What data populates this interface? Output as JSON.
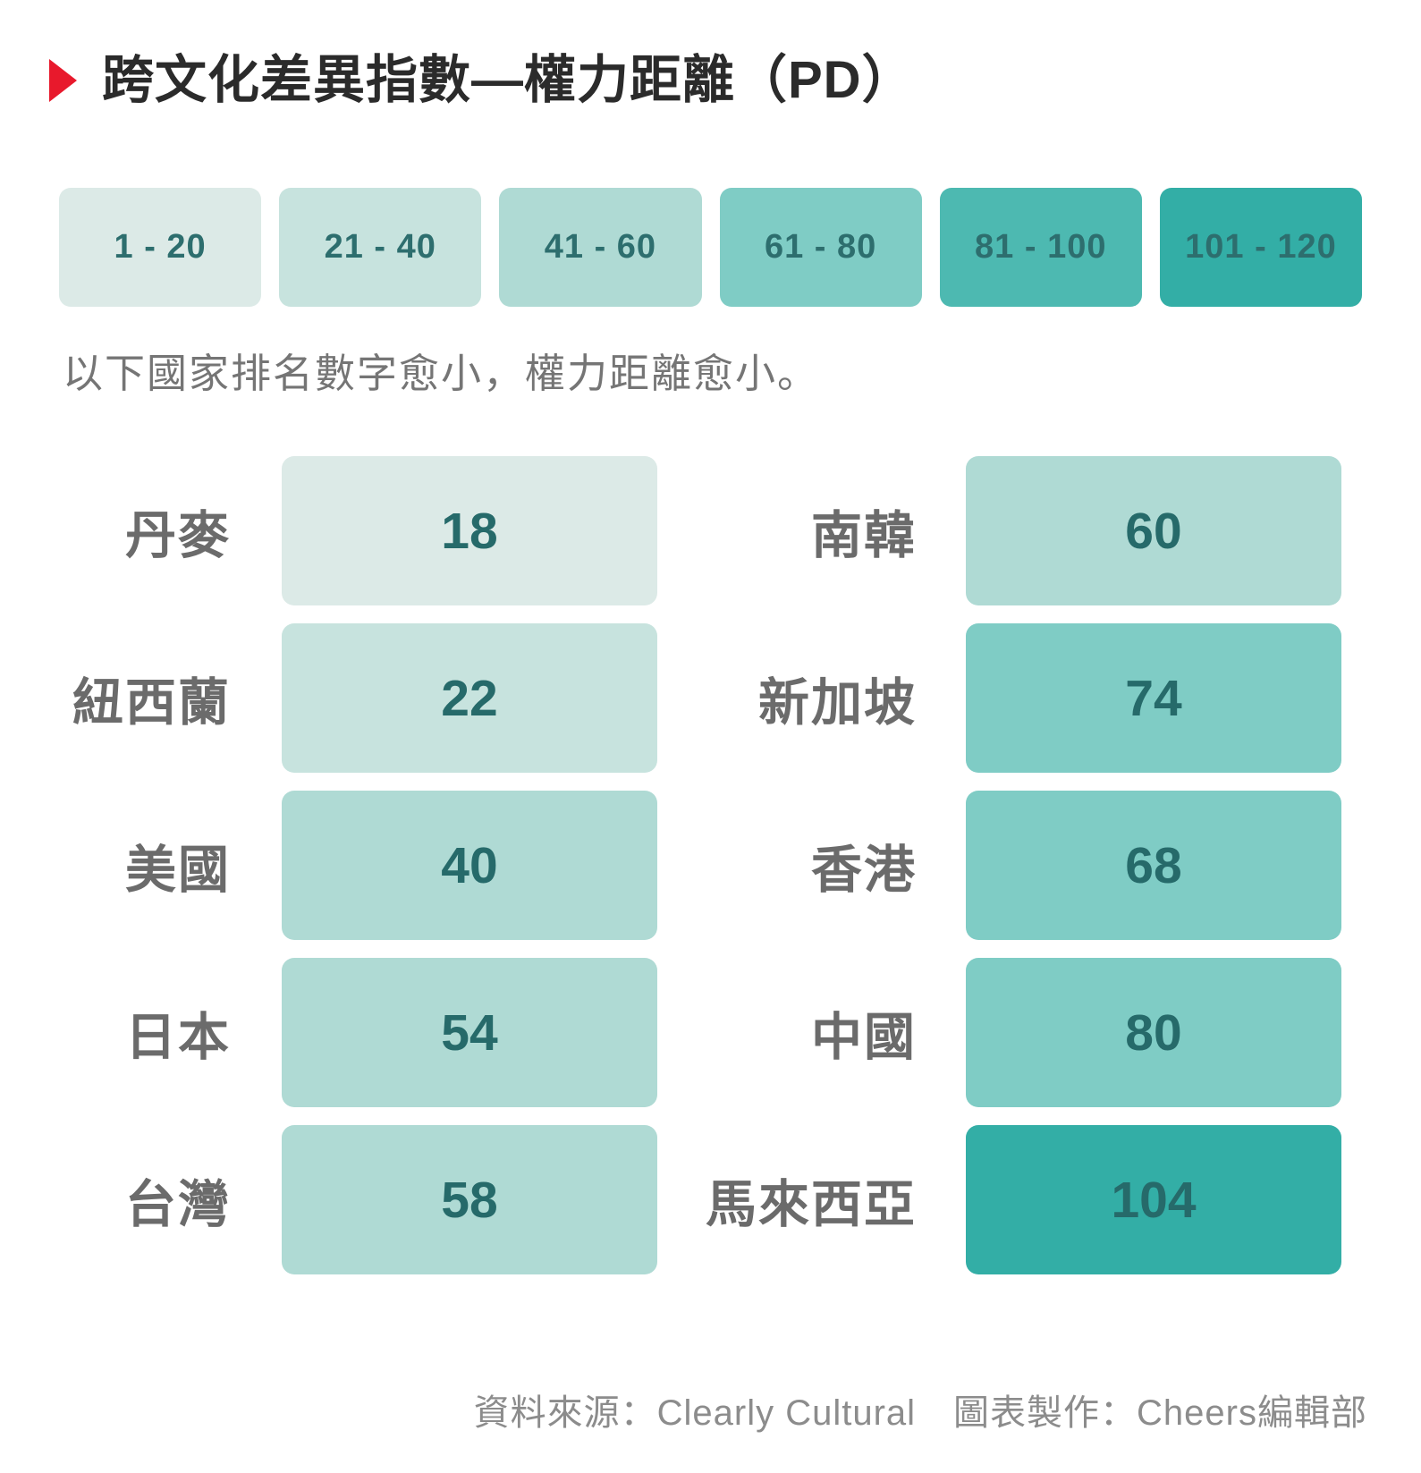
{
  "title": "跨文化差異指數—權力距離（PD）",
  "subtitle": "以下國家排名數字愈小，權力距離愈小。",
  "colors": {
    "accent_red": "#e8192c",
    "title_text": "#2b2b2b",
    "label_gray": "#6b6b6b",
    "value_teal": "#266a6a",
    "subtitle_gray": "#757575",
    "footer_gray": "#8c8c8c",
    "band_1": "#dceae7",
    "band_2": "#c7e3de",
    "band_3": "#afdad4",
    "band_4": "#7fccc5",
    "band_5": "#4db9b1",
    "band_6": "#33aea6"
  },
  "legend": {
    "bands": [
      {
        "label": "1 - 20",
        "color": "#dceae7"
      },
      {
        "label": "21 - 40",
        "color": "#c7e3de"
      },
      {
        "label": "41 - 60",
        "color": "#afdad4"
      },
      {
        "label": "61 - 80",
        "color": "#7fccc5"
      },
      {
        "label": "81 - 100",
        "color": "#4db9b1"
      },
      {
        "label": "101 - 120",
        "color": "#33aea6"
      }
    ]
  },
  "rows": {
    "left": [
      {
        "label": "丹麥",
        "value": "18",
        "color": "#dceae7"
      },
      {
        "label": "紐西蘭",
        "value": "22",
        "color": "#c7e3de"
      },
      {
        "label": "美國",
        "value": "40",
        "color": "#afdad4"
      },
      {
        "label": "日本",
        "value": "54",
        "color": "#afdad4"
      },
      {
        "label": "台灣",
        "value": "58",
        "color": "#afdad4"
      }
    ],
    "right": [
      {
        "label": "南韓",
        "value": "60",
        "color": "#afdad4"
      },
      {
        "label": "新加坡",
        "value": "74",
        "color": "#7fccc5"
      },
      {
        "label": "香港",
        "value": "68",
        "color": "#7fccc5"
      },
      {
        "label": "中國",
        "value": "80",
        "color": "#7fccc5"
      },
      {
        "label": "馬來西亞",
        "value": "104",
        "color": "#33aea6"
      }
    ]
  },
  "footer": {
    "source": "資料來源：Clearly Cultural",
    "credit": "圖表製作：Cheers編輯部"
  },
  "chart_data": {
    "type": "bar",
    "title": "跨文化差異指數—權力距離（PD）",
    "subtitle": "以下國家排名數字愈小，權力距離愈小。",
    "categories": [
      "丹麥",
      "紐西蘭",
      "美國",
      "日本",
      "台灣",
      "南韓",
      "新加坡",
      "香港",
      "中國",
      "馬來西亞"
    ],
    "values": [
      18,
      22,
      40,
      54,
      58,
      60,
      74,
      68,
      80,
      104
    ],
    "value_bands": [
      "1 - 20",
      "21 - 40",
      "41 - 60",
      "61 - 80",
      "81 - 100",
      "101 - 120"
    ],
    "band_colors": [
      "#dceae7",
      "#c7e3de",
      "#afdad4",
      "#7fccc5",
      "#4db9b1",
      "#33aea6"
    ],
    "legend_position": "top",
    "grid": false,
    "source": "Clearly Cultural",
    "credit": "Cheers編輯部"
  }
}
